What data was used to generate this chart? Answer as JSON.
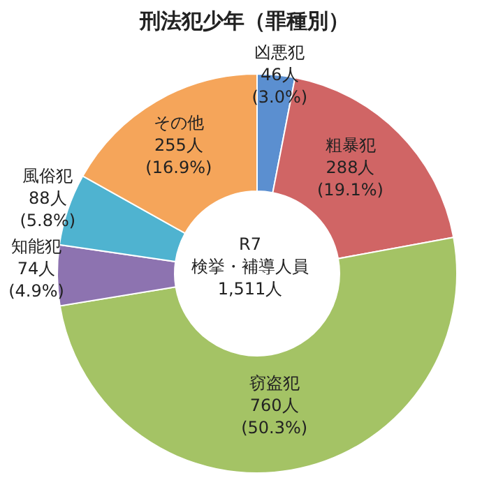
{
  "chart_data": {
    "type": "donut",
    "title": "刑法犯少年（罪種別）",
    "categories": [
      "凶悪犯",
      "粗暴犯",
      "窃盗犯",
      "知能犯",
      "風俗犯",
      "その他"
    ],
    "values": [
      46,
      288,
      760,
      74,
      88,
      255
    ],
    "colors": [
      "#5b8fd0",
      "#d06565",
      "#a4c365",
      "#8d73b0",
      "#4fb3d0",
      "#f5a55a"
    ],
    "value_labels": [
      "46人\n(3.0%)",
      "288人\n(19.1%)",
      "760人\n(50.3%)",
      "74人\n(4.9%)",
      "88人\n(5.8%)",
      "255人\n(16.9%)"
    ],
    "annotations": [
      "R7\n検挙・補導人員\n1,511人"
    ],
    "legend": false
  }
}
